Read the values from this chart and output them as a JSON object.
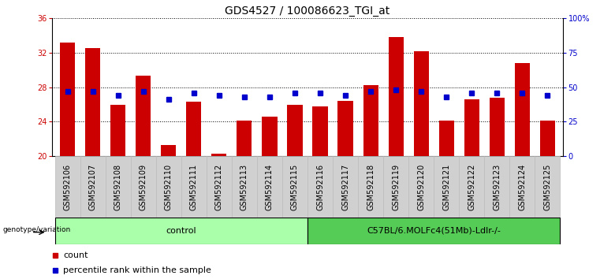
{
  "title": "GDS4527 / 100086623_TGI_at",
  "samples": [
    "GSM592106",
    "GSM592107",
    "GSM592108",
    "GSM592109",
    "GSM592110",
    "GSM592111",
    "GSM592112",
    "GSM592113",
    "GSM592114",
    "GSM592115",
    "GSM592116",
    "GSM592117",
    "GSM592118",
    "GSM592119",
    "GSM592120",
    "GSM592121",
    "GSM592122",
    "GSM592123",
    "GSM592124",
    "GSM592125"
  ],
  "counts": [
    33.2,
    32.5,
    26.0,
    29.3,
    21.3,
    26.3,
    20.3,
    24.1,
    24.6,
    26.0,
    25.8,
    26.4,
    28.2,
    33.8,
    32.2,
    24.1,
    26.6,
    26.8,
    30.8,
    24.1
  ],
  "percentile_ranks": [
    47,
    47,
    44,
    47,
    41,
    46,
    44,
    43,
    43,
    46,
    46,
    44,
    47,
    48,
    47,
    43,
    46,
    46,
    46,
    44
  ],
  "bar_color": "#CC0000",
  "dot_color": "#0000CC",
  "ymin": 20,
  "ymax": 36,
  "y2min": 0,
  "y2max": 100,
  "yticks": [
    20,
    24,
    28,
    32,
    36
  ],
  "y2ticks": [
    0,
    25,
    50,
    75,
    100
  ],
  "y2ticklabels": [
    "0",
    "25",
    "50",
    "75",
    "100%"
  ],
  "group1_label": "control",
  "group2_label": "C57BL/6.MOLFc4(51Mb)-Ldlr-/-",
  "group1_count": 10,
  "group1_color": "#AAFFAA",
  "group2_color": "#55CC55",
  "genotype_label": "genotype/variation",
  "legend_count_label": "count",
  "legend_pct_label": "percentile rank within the sample",
  "bg_color": "#FFFFFF",
  "plot_bg_color": "#FFFFFF",
  "axis_color_left": "#CC0000",
  "axis_color_right": "#0000CC",
  "title_fontsize": 10,
  "tick_fontsize": 7,
  "label_fontsize": 8,
  "cell_bg_color": "#D0D0D0",
  "cell_border_color": "#BBBBBB"
}
